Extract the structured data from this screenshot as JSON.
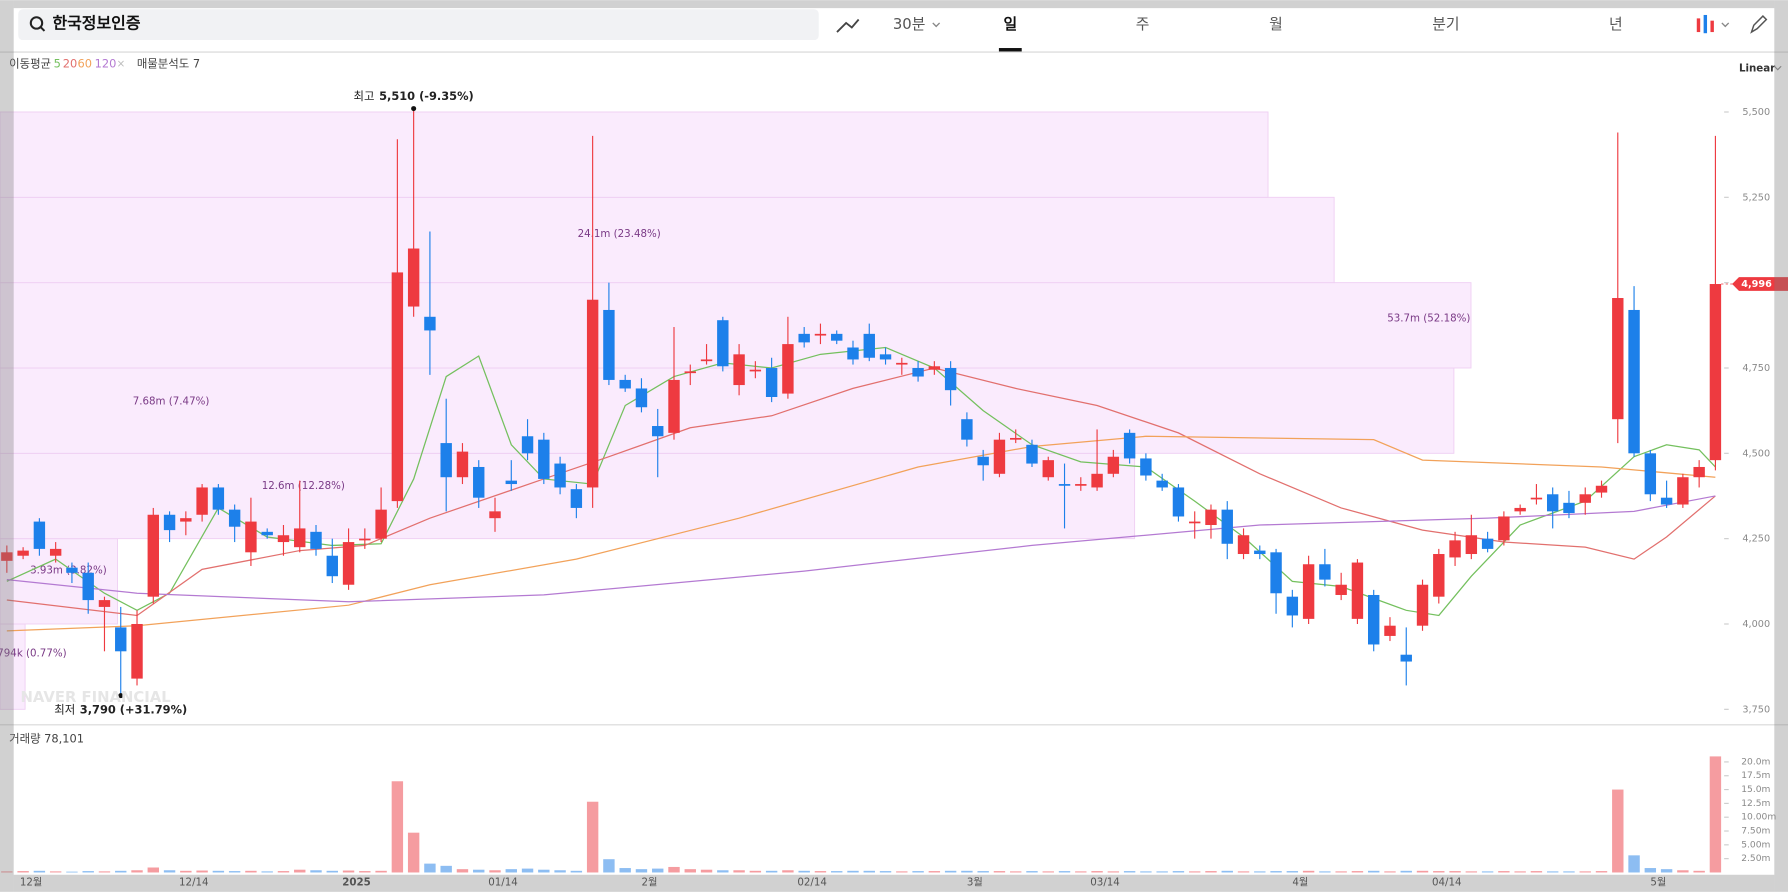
{
  "toolbar": {
    "search": "한국정보인증",
    "interval": "30분",
    "tabs": [
      "일",
      "주",
      "월",
      "분기",
      "년"
    ],
    "active_tab": 0
  },
  "chart_data": {
    "type": "candlestick",
    "categories": [
      null,
      "12월",
      null,
      null,
      null,
      null,
      null,
      null,
      null,
      null,
      null,
      "12/14",
      null,
      null,
      null,
      null,
      null,
      null,
      null,
      null,
      null,
      "2025",
      null,
      null,
      null,
      null,
      null,
      null,
      null,
      null,
      "01/14",
      null,
      null,
      null,
      null,
      null,
      null,
      null,
      null,
      "2월",
      null,
      null,
      null,
      null,
      null,
      null,
      null,
      null,
      null,
      "02/14",
      null,
      null,
      null,
      null,
      null,
      null,
      null,
      null,
      null,
      "3월",
      null,
      null,
      null,
      null,
      null,
      null,
      null,
      "03/14",
      null,
      null,
      null,
      null,
      null,
      null,
      null,
      null,
      null,
      null,
      null,
      "4월",
      null,
      null,
      null,
      null,
      null,
      null,
      null,
      null,
      "04/14",
      null,
      null,
      null,
      null,
      null,
      null,
      null,
      null,
      null,
      null,
      null,
      null,
      "5월",
      null,
      null,
      null,
      null
    ],
    "open": [
      4185,
      4200,
      4300,
      4200,
      4165,
      4150,
      4050,
      3990,
      3840,
      4080,
      4320,
      4300,
      4320,
      4400,
      4335,
      4210,
      4270,
      4240,
      4225,
      4270,
      4200,
      4115,
      4245,
      4250,
      4360,
      4930,
      4900,
      4530,
      4430,
      4460,
      4310,
      4420,
      4550,
      4540,
      4470,
      4395,
      4400,
      4920,
      4715,
      4690,
      4580,
      4560,
      4735,
      4770,
      4890,
      4700,
      4740,
      4750,
      4675,
      4850,
      4845,
      4850,
      4810,
      4850,
      4790,
      4760,
      4750,
      4745,
      4750,
      4600,
      4490,
      4440,
      4540,
      4525,
      4430,
      4410,
      4405,
      4400,
      4440,
      4560,
      4485,
      4420,
      4400,
      4295,
      4290,
      4335,
      4205,
      4215,
      4210,
      4080,
      4015,
      4175,
      4085,
      4015,
      4085,
      3965,
      3910,
      3995,
      4080,
      4195,
      4205,
      4250,
      4245,
      4330,
      4365,
      4380,
      4355,
      4355,
      4385,
      4600,
      4920,
      4500,
      4370,
      4350,
      4430,
      4480
    ],
    "high": [
      4230,
      4225,
      4310,
      4240,
      4180,
      4180,
      4080,
      4050,
      4040,
      4340,
      4330,
      4330,
      4410,
      4410,
      4350,
      4370,
      4280,
      4290,
      4420,
      4290,
      4250,
      4280,
      4280,
      4400,
      5420,
      5510,
      5150,
      4660,
      4530,
      4480,
      4370,
      4480,
      4600,
      4560,
      4490,
      4410,
      5430,
      5000,
      4730,
      4720,
      4630,
      4870,
      4760,
      4820,
      4900,
      4820,
      4770,
      4780,
      4900,
      4870,
      4880,
      4860,
      4830,
      4880,
      4810,
      4780,
      4770,
      4770,
      4770,
      4620,
      4510,
      4560,
      4570,
      4540,
      4490,
      4470,
      4430,
      4570,
      4510,
      4570,
      4500,
      4440,
      4410,
      4330,
      4350,
      4360,
      4280,
      4230,
      4220,
      4100,
      4200,
      4220,
      4150,
      4190,
      4100,
      4020,
      3990,
      4130,
      4220,
      4270,
      4320,
      4270,
      4330,
      4350,
      4410,
      4400,
      4390,
      4400,
      4420,
      5440,
      4990,
      4510,
      4420,
      4440,
      4480,
      5430
    ],
    "low": [
      4150,
      4190,
      4200,
      4180,
      4120,
      4030,
      3920,
      3790,
      3820,
      4060,
      4240,
      4260,
      4300,
      4320,
      4240,
      4170,
      4250,
      4200,
      4210,
      4200,
      4120,
      4100,
      4220,
      4240,
      4340,
      4900,
      4730,
      4330,
      4410,
      4340,
      4270,
      4390,
      4480,
      4410,
      4380,
      4310,
      4340,
      4700,
      4680,
      4620,
      4430,
      4540,
      4700,
      4760,
      4740,
      4670,
      4720,
      4650,
      4660,
      4810,
      4820,
      4820,
      4760,
      4770,
      4760,
      4730,
      4710,
      4730,
      4640,
      4520,
      4420,
      4430,
      4530,
      4460,
      4420,
      4280,
      4390,
      4390,
      4430,
      4470,
      4420,
      4390,
      4300,
      4250,
      4250,
      4190,
      4190,
      4190,
      4030,
      3990,
      4000,
      4110,
      4070,
      4000,
      3920,
      3950,
      3820,
      3980,
      4060,
      4170,
      4190,
      4210,
      4230,
      4320,
      4350,
      4280,
      4310,
      4320,
      4370,
      4530,
      4490,
      4360,
      4340,
      4340,
      4400,
      4450
    ],
    "close": [
      4210,
      4215,
      4220,
      4220,
      4150,
      4070,
      4070,
      3920,
      4000,
      4320,
      4275,
      4310,
      4400,
      4335,
      4285,
      4300,
      4260,
      4260,
      4280,
      4220,
      4140,
      4240,
      4250,
      4335,
      5030,
      5100,
      4860,
      4430,
      4505,
      4370,
      4330,
      4410,
      4500,
      4425,
      4400,
      4340,
      4950,
      4715,
      4690,
      4635,
      4550,
      4715,
      4740,
      4775,
      4755,
      4790,
      4745,
      4665,
      4820,
      4825,
      4850,
      4830,
      4775,
      4780,
      4775,
      4765,
      4725,
      4755,
      4685,
      4540,
      4465,
      4540,
      4545,
      4470,
      4480,
      4405,
      4410,
      4440,
      4490,
      4485,
      4435,
      4400,
      4315,
      4300,
      4335,
      4235,
      4260,
      4205,
      4090,
      4025,
      4175,
      4130,
      4115,
      4180,
      3940,
      3995,
      3890,
      4115,
      4205,
      4245,
      4260,
      4220,
      4315,
      4340,
      4370,
      4330,
      4325,
      4380,
      4405,
      4955,
      4500,
      4380,
      4350,
      4430,
      4460,
      4996
    ],
    "volume": [
      200000,
      250000,
      300000,
      200000,
      150000,
      250000,
      200000,
      300000,
      400000,
      900000,
      400000,
      300000,
      350000,
      300000,
      250000,
      300000,
      200000,
      250000,
      500000,
      400000,
      300000,
      350000,
      250000,
      300000,
      16500000,
      7200000,
      1600000,
      1200000,
      600000,
      500000,
      400000,
      600000,
      700000,
      500000,
      400000,
      300000,
      12800000,
      2400000,
      800000,
      600000,
      700000,
      1000000,
      600000,
      500000,
      400000,
      400000,
      300000,
      300000,
      400000,
      300000,
      250000,
      250000,
      300000,
      300000,
      250000,
      200000,
      250000,
      250000,
      300000,
      300000,
      250000,
      250000,
      200000,
      250000,
      200000,
      250000,
      200000,
      250000,
      200000,
      250000,
      200000,
      200000,
      250000,
      200000,
      250000,
      300000,
      200000,
      200000,
      250000,
      250000,
      300000,
      200000,
      200000,
      250000,
      300000,
      200000,
      300000,
      300000,
      250000,
      250000,
      200000,
      200000,
      250000,
      200000,
      250000,
      200000,
      200000,
      200000,
      250000,
      15000000,
      3100000,
      800000,
      600000,
      400000,
      300000,
      21000000
    ],
    "up_color": "#ee3a40",
    "down_color": "#1d80ea",
    "up_volume_color": "#f59ca0",
    "down_volume_color": "#8dbdf2",
    "ylim": [
      3713,
      5674
    ],
    "yticks": [
      {
        "value": 3750,
        "label": "3,750"
      },
      {
        "value": 4000,
        "label": "4,000"
      },
      {
        "value": 4250,
        "label": "4,250"
      },
      {
        "value": 4500,
        "label": "4,500"
      },
      {
        "value": 4750,
        "label": "4,750"
      },
      {
        "value": 5000,
        "label": "5,000"
      },
      {
        "value": 5250,
        "label": "5,250"
      },
      {
        "value": 5500,
        "label": "5,500"
      }
    ],
    "volume_lim": [
      0,
      26200000
    ],
    "volume_ticks": [
      {
        "value": 2500000,
        "label": "2.50m"
      },
      {
        "value": 5000000,
        "label": "5.00m"
      },
      {
        "value": 7500000,
        "label": "7.50m"
      },
      {
        "value": 10000000,
        "label": "10.00m"
      },
      {
        "value": 12500000,
        "label": "12.5m"
      },
      {
        "value": 15000000,
        "label": "15.0m"
      },
      {
        "value": 17500000,
        "label": "17.5m"
      },
      {
        "value": 20000000,
        "label": "20.0m"
      }
    ],
    "scale": "Linear",
    "last_label": "4,996",
    "high_mark": {
      "label": "최고",
      "value_label": "5,510 (-9.35%)"
    },
    "low_mark": {
      "label": "최저",
      "value_label": "3,790 (+31.79%)"
    },
    "ma": {
      "title": "이동평균",
      "series": [
        {
          "name": "5",
          "color": "#74c05e",
          "x": [
            0,
            3,
            6,
            8,
            10,
            13,
            16,
            20,
            23,
            25,
            27,
            29,
            31,
            33,
            36,
            38,
            41,
            44,
            47,
            50,
            54,
            57,
            60,
            63,
            66,
            70,
            73,
            76,
            79,
            82,
            86,
            88,
            90,
            93,
            97,
            100,
            102,
            104,
            105
          ],
          "values": [
            4125,
            4190,
            4090,
            4040,
            4090,
            4340,
            4255,
            4230,
            4235,
            4425,
            4725,
            4785,
            4525,
            4425,
            4410,
            4640,
            4725,
            4765,
            4750,
            4790,
            4810,
            4750,
            4625,
            4525,
            4475,
            4460,
            4360,
            4255,
            4125,
            4110,
            4040,
            4025,
            4140,
            4290,
            4360,
            4490,
            4525,
            4510,
            4460
          ]
        },
        {
          "name": "20",
          "color": "#e2706e",
          "x": [
            0,
            8,
            12,
            18,
            22,
            26,
            33,
            37,
            42,
            47,
            52,
            57,
            62,
            67,
            72,
            77,
            82,
            87,
            92,
            97,
            100,
            102,
            105
          ],
          "values": [
            4070,
            4025,
            4160,
            4215,
            4230,
            4310,
            4425,
            4490,
            4575,
            4610,
            4690,
            4750,
            4690,
            4640,
            4560,
            4440,
            4340,
            4275,
            4240,
            4225,
            4190,
            4255,
            4375
          ]
        },
        {
          "name": "60",
          "color": "#f2a25a",
          "x": [
            0,
            8,
            21,
            26,
            35,
            45,
            56,
            63,
            70,
            84,
            87,
            98,
            105
          ],
          "values": [
            3980,
            3995,
            4055,
            4115,
            4190,
            4310,
            4460,
            4520,
            4550,
            4540,
            4480,
            4460,
            4430
          ]
        },
        {
          "name": "120",
          "color": "#b47ad2",
          "x": [
            0,
            8,
            21,
            33,
            49,
            63,
            77,
            91,
            100,
            105
          ],
          "values": [
            4130,
            4090,
            4065,
            4085,
            4155,
            4230,
            4290,
            4310,
            4330,
            4375
          ]
        }
      ]
    },
    "profile": {
      "title": "매물분석도 7",
      "bins": [
        3750,
        4000,
        4250,
        4500,
        4750,
        5000,
        5250,
        5500
      ],
      "labels": [
        "794k (0.77%)",
        "3.93m (3.82%)",
        "12.6m (12.28%)",
        "7.68m (7.47%)",
        "53.7m (52.18%)",
        "24.1m (23.48%)",
        null
      ]
    },
    "volume_title": "거래량 78,101",
    "watermark": "NAVER FINANCIAL"
  }
}
